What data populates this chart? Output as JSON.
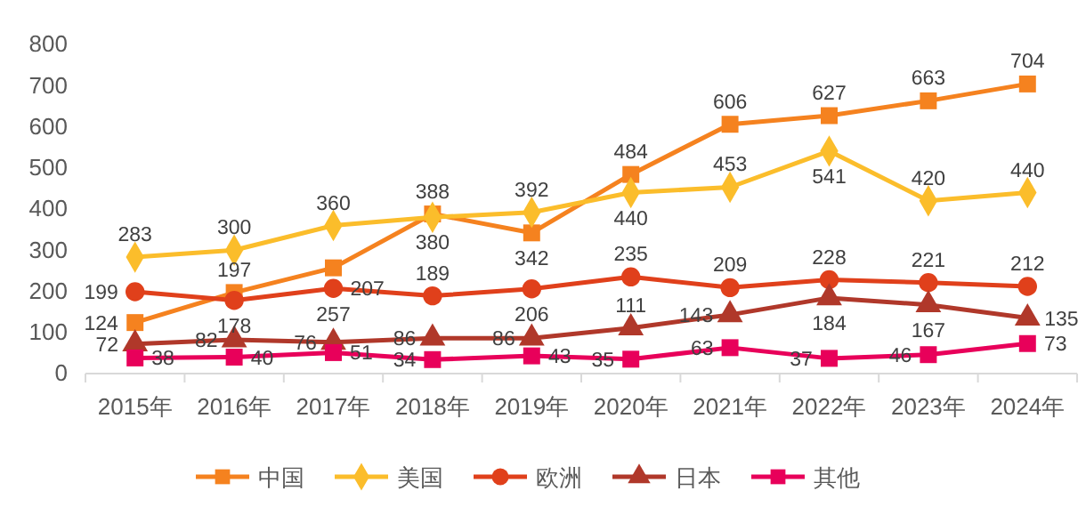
{
  "chart_data": {
    "type": "line",
    "categories": [
      "2015年",
      "2016年",
      "2017年",
      "2018年",
      "2019年",
      "2020年",
      "2021年",
      "2022年",
      "2023年",
      "2024年"
    ],
    "series": [
      {
        "name": "中国",
        "color": "#f5821f",
        "marker": "square",
        "values": [
          124,
          197,
          257,
          388,
          342,
          484,
          606,
          627,
          663,
          704
        ]
      },
      {
        "name": "美国",
        "color": "#fbbd2b",
        "marker": "diamond",
        "values": [
          283,
          300,
          360,
          380,
          392,
          440,
          453,
          541,
          420,
          440
        ]
      },
      {
        "name": "欧洲",
        "color": "#e0401b",
        "marker": "circle",
        "values": [
          199,
          178,
          207,
          189,
          206,
          235,
          209,
          228,
          221,
          212
        ]
      },
      {
        "name": "日本",
        "color": "#b0382a",
        "marker": "triangle",
        "values": [
          72,
          82,
          76,
          86,
          86,
          111,
          143,
          184,
          167,
          135
        ]
      },
      {
        "name": "其他",
        "color": "#e8005a",
        "marker": "square",
        "values": [
          38,
          40,
          51,
          34,
          43,
          35,
          63,
          37,
          46,
          73
        ]
      }
    ],
    "ylim": [
      0,
      800
    ],
    "yticks": [
      0,
      100,
      200,
      300,
      400,
      500,
      600,
      700,
      800
    ],
    "data_labels": true,
    "grid": false,
    "legend": "bottom"
  }
}
